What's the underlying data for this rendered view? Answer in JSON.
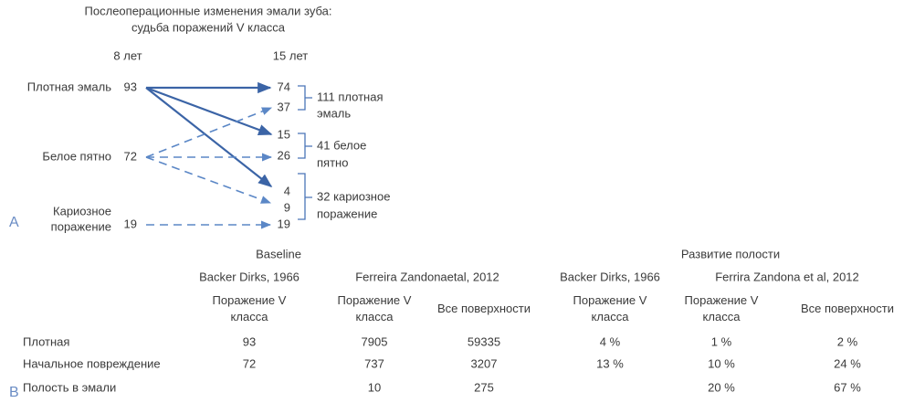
{
  "diagram": {
    "title": [
      "Послеоперационные изменения эмали зуба:",
      "судьба поражений  V класса"
    ],
    "panel_label": "A",
    "columns": [
      "8 лет",
      "15 лет"
    ],
    "left_nodes": [
      {
        "label": [
          "Плотная эмаль"
        ],
        "value": 93
      },
      {
        "label": [
          "Белое пятно"
        ],
        "value": 72
      },
      {
        "label": [
          "Кариозное",
          "поражение"
        ],
        "value": 19
      }
    ],
    "right_values": [
      74,
      37,
      15,
      26,
      4,
      9,
      19
    ],
    "groups": [
      [
        "111 плотная",
        "эмаль"
      ],
      [
        "41 белое",
        "пятно"
      ],
      [
        "32 кариозное",
        "поражение"
      ]
    ]
  },
  "table": {
    "panel_label": "B",
    "group_headers": [
      "Baseline",
      "Развитие полости"
    ],
    "study_headers": [
      "Backer Dirks, 1966",
      "Ferreira Zandonaetal, 2012",
      "Backer Dirks, 1966",
      "Ferrira Zandona et al, 2012"
    ],
    "column_headers": [
      "Поражение V класса",
      "Поражение V класса",
      "Все поверхности",
      "Поражение V класса",
      "Поражение V класса",
      "Все поверхности"
    ],
    "rows": [
      [
        "Плотная",
        93,
        7905,
        59335,
        "4 %",
        "1 %",
        "2 %"
      ],
      [
        "Начальное повреждение",
        72,
        737,
        3207,
        "13 %",
        "10 %",
        "24 %"
      ],
      [
        "Полость в эмали",
        null,
        10,
        275,
        null,
        "20 %",
        "67 %"
      ]
    ]
  }
}
